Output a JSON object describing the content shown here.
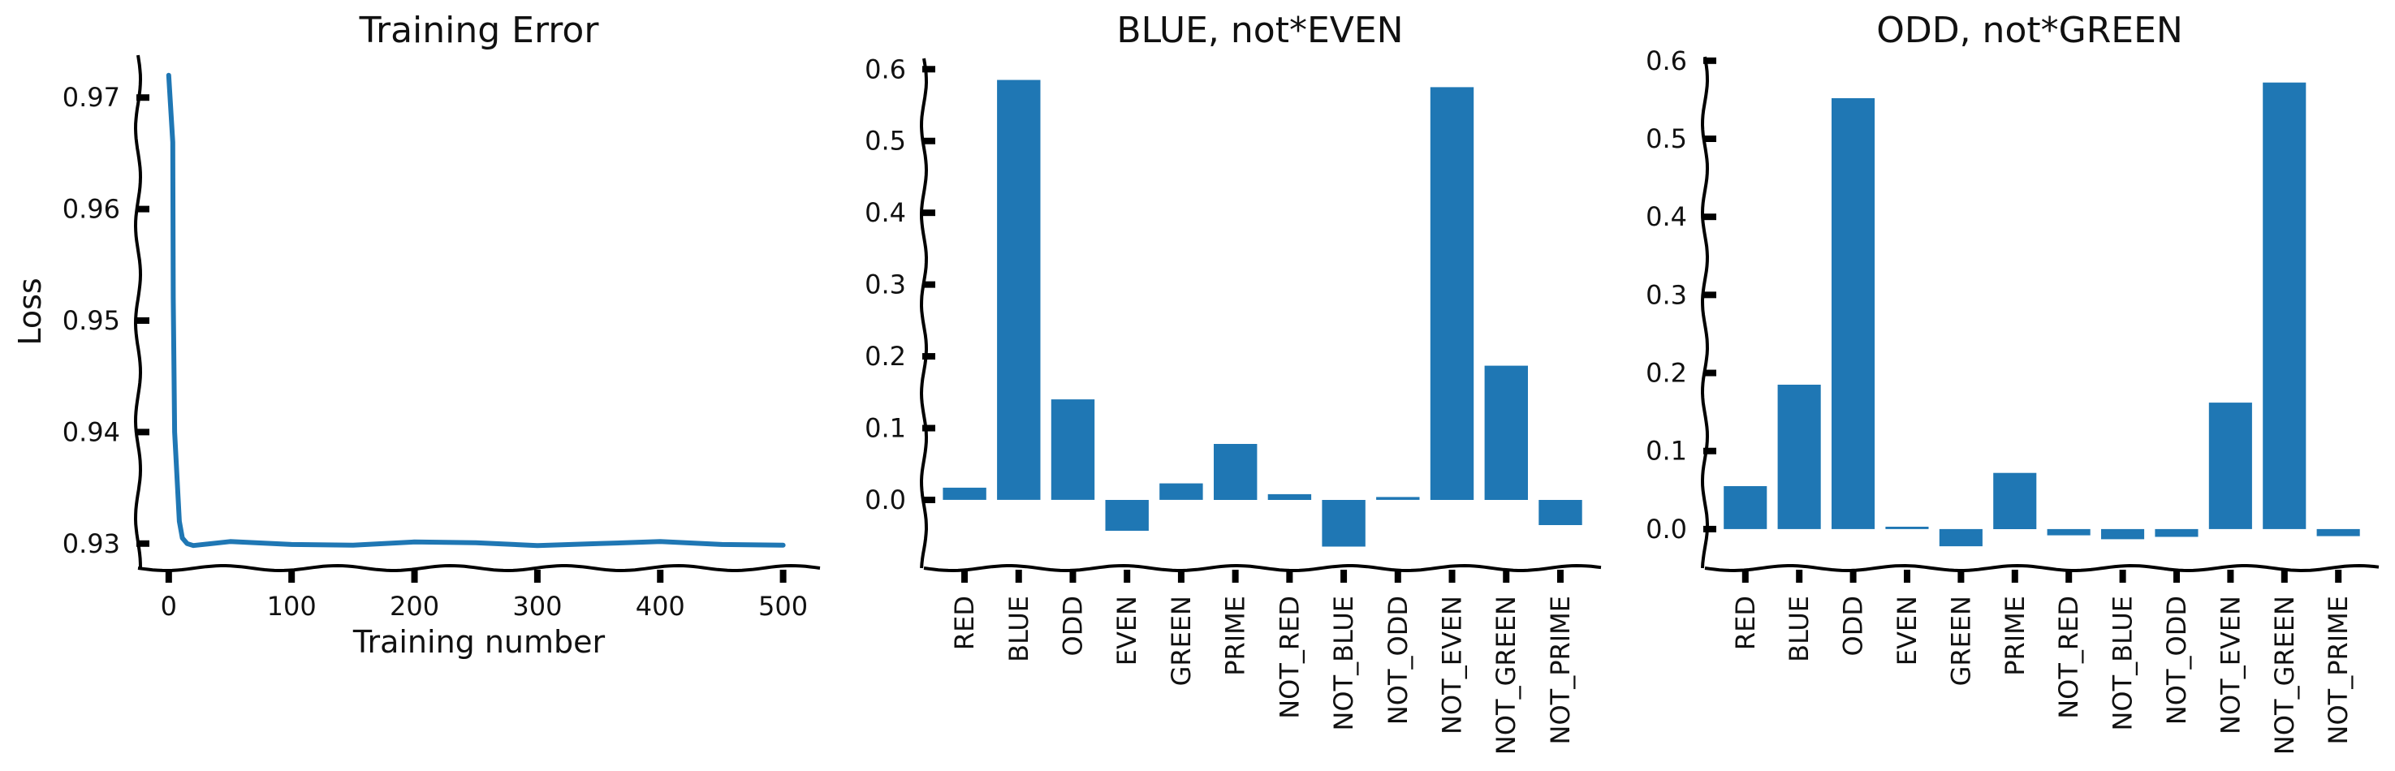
{
  "colors": {
    "series": "#1f77b4",
    "axis": "#000000",
    "text": "#111111"
  },
  "chart_data": [
    {
      "type": "line",
      "title": "Training Error",
      "xlabel": "Training number",
      "ylabel": "Loss",
      "xlim": [
        -25,
        530
      ],
      "ylim": [
        0.9278,
        0.9738
      ],
      "xticks": [
        0,
        100,
        200,
        300,
        400,
        500
      ],
      "yticks": [
        0.93,
        0.94,
        0.95,
        0.96,
        0.97
      ],
      "xtick_labels": [
        "0",
        "100",
        "200",
        "300",
        "400",
        "500"
      ],
      "ytick_labels": [
        "0.93",
        "0.94",
        "0.95",
        "0.96",
        "0.97"
      ],
      "grid": false,
      "series": [
        {
          "x": [
            0,
            2,
            4,
            6,
            8,
            10,
            15,
            20,
            50,
            100,
            150,
            200,
            250,
            300,
            350,
            400,
            450,
            500
          ],
          "values": [
            0.972,
            0.966,
            0.952,
            0.94,
            0.932,
            0.9305,
            0.93,
            0.93,
            0.93,
            0.93,
            0.93,
            0.93,
            0.93,
            0.93,
            0.93,
            0.93,
            0.93,
            0.93
          ]
        }
      ]
    },
    {
      "type": "bar",
      "title": "BLUE, not*EVEN",
      "categories": [
        "RED",
        "BLUE",
        "ODD",
        "EVEN",
        "GREEN",
        "PRIME",
        "NOT_RED",
        "NOT_BLUE",
        "NOT_ODD",
        "NOT_EVEN",
        "NOT_GREEN",
        "NOT_PRIME"
      ],
      "values": [
        0.017,
        0.585,
        0.14,
        -0.043,
        0.023,
        0.078,
        0.008,
        -0.065,
        0.004,
        0.575,
        0.187,
        -0.035
      ],
      "ylim": [
        -0.095,
        0.615
      ],
      "yticks": [
        0.0,
        0.1,
        0.2,
        0.3,
        0.4,
        0.5,
        0.6
      ],
      "ytick_labels": [
        "0.0",
        "0.1",
        "0.2",
        "0.3",
        "0.4",
        "0.5",
        "0.6"
      ],
      "grid": false
    },
    {
      "type": "bar",
      "title": "ODD, not*GREEN",
      "categories": [
        "RED",
        "BLUE",
        "ODD",
        "EVEN",
        "GREEN",
        "PRIME",
        "NOT_RED",
        "NOT_BLUE",
        "NOT_ODD",
        "NOT_EVEN",
        "NOT_GREEN",
        "NOT_PRIME"
      ],
      "values": [
        0.055,
        0.185,
        0.552,
        0.003,
        -0.022,
        0.072,
        -0.008,
        -0.013,
        -0.01,
        0.162,
        0.572,
        -0.009
      ],
      "ylim": [
        -0.05,
        0.605
      ],
      "yticks": [
        0.0,
        0.1,
        0.2,
        0.3,
        0.4,
        0.5,
        0.6
      ],
      "ytick_labels": [
        "0.0",
        "0.1",
        "0.2",
        "0.3",
        "0.4",
        "0.5",
        "0.6"
      ],
      "grid": false
    }
  ]
}
